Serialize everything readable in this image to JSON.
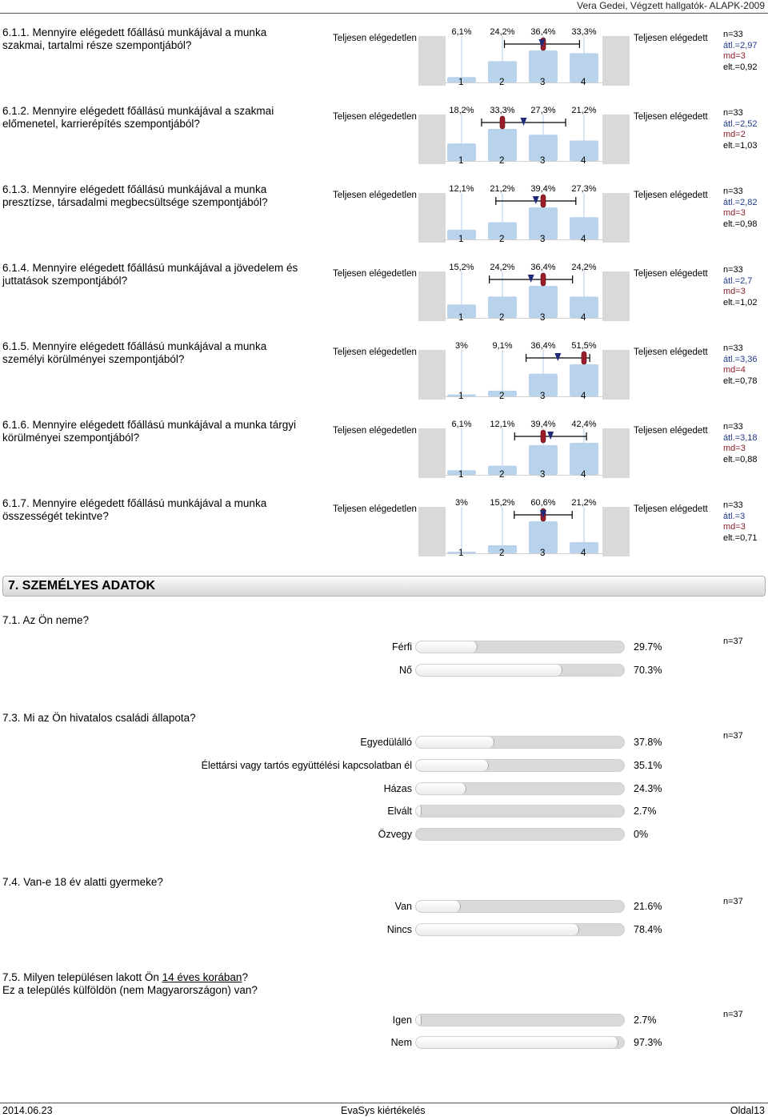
{
  "header": {
    "text": "Vera Gedei, Végzett hallgatók- ALAPK-2009"
  },
  "scale_questions": [
    {
      "title": "6.1.1. Mennyire elégedett főállású munkájával a munka szakmai, tartalmi része szempontjából?",
      "left_label": "Teljesen elégedetlen",
      "right_label": "Teljesen elégedett",
      "percents": [
        "6,1%",
        "24,2%",
        "36,4%",
        "33,3%"
      ],
      "distribution": [
        6.1,
        24.2,
        36.4,
        33.3
      ],
      "scale_labels": [
        "1",
        "2",
        "3",
        "4"
      ],
      "mean": 2.97,
      "median": 3,
      "sd": 0.92,
      "stats": {
        "n": "n=33",
        "avg": "átl.=2,97",
        "md": "md=3",
        "sd": "elt.=0,92"
      }
    },
    {
      "title": "6.1.2. Mennyire elégedett főállású munkájával a szakmai előmenetel, karrierépítés szempontjából?",
      "left_label": "Teljesen elégedetlen",
      "right_label": "Teljesen elégedett",
      "percents": [
        "18,2%",
        "33,3%",
        "27,3%",
        "21,2%"
      ],
      "distribution": [
        18.2,
        33.3,
        27.3,
        21.2
      ],
      "scale_labels": [
        "1",
        "2",
        "3",
        "4"
      ],
      "mean": 2.52,
      "median": 2,
      "sd": 1.03,
      "stats": {
        "n": "n=33",
        "avg": "átl.=2,52",
        "md": "md=2",
        "sd": "elt.=1,03"
      }
    },
    {
      "title": "6.1.3. Mennyire elégedett főállású munkájával a munka presztízse, társadalmi megbecsültsége szempontjából?",
      "left_label": "Teljesen elégedetlen",
      "right_label": "Teljesen elégedett",
      "percents": [
        "12,1%",
        "21,2%",
        "39,4%",
        "27,3%"
      ],
      "distribution": [
        12.1,
        21.2,
        39.4,
        27.3
      ],
      "scale_labels": [
        "1",
        "2",
        "3",
        "4"
      ],
      "mean": 2.82,
      "median": 3,
      "sd": 0.98,
      "stats": {
        "n": "n=33",
        "avg": "átl.=2,82",
        "md": "md=3",
        "sd": "elt.=0,98"
      }
    },
    {
      "title": "6.1.4. Mennyire elégedett főállású munkájával a jövedelem és juttatások szempontjából?",
      "left_label": "Teljesen elégedetlen",
      "right_label": "Teljesen elégedett",
      "percents": [
        "15,2%",
        "24,2%",
        "36,4%",
        "24,2%"
      ],
      "distribution": [
        15.2,
        24.2,
        36.4,
        24.2
      ],
      "scale_labels": [
        "1",
        "2",
        "3",
        "4"
      ],
      "mean": 2.7,
      "median": 3,
      "sd": 1.02,
      "stats": {
        "n": "n=33",
        "avg": "átl.=2,7",
        "md": "md=3",
        "sd": "elt.=1,02"
      }
    },
    {
      "title": "6.1.5. Mennyire elégedett főállású munkájával a munka személyi körülményei szempontjából?",
      "left_label": "Teljesen elégedetlen",
      "right_label": "Teljesen elégedett",
      "percents": [
        "3%",
        "9,1%",
        "36,4%",
        "51,5%"
      ],
      "distribution": [
        3,
        9.1,
        36.4,
        51.5
      ],
      "scale_labels": [
        "1",
        "2",
        "3",
        "4"
      ],
      "mean": 3.36,
      "median": 4,
      "sd": 0.78,
      "stats": {
        "n": "n=33",
        "avg": "átl.=3,36",
        "md": "md=4",
        "sd": "elt.=0,78"
      }
    },
    {
      "title": "6.1.6. Mennyire elégedett főállású munkájával a munka tárgyi körülményei szempontjából?",
      "left_label": "Teljesen elégedetlen",
      "right_label": "Teljesen elégedett",
      "percents": [
        "6,1%",
        "12,1%",
        "39,4%",
        "42,4%"
      ],
      "distribution": [
        6.1,
        12.1,
        39.4,
        42.4
      ],
      "scale_labels": [
        "1",
        "2",
        "3",
        "4"
      ],
      "mean": 3.18,
      "median": 3,
      "sd": 0.88,
      "stats": {
        "n": "n=33",
        "avg": "átl.=3,18",
        "md": "md=3",
        "sd": "elt.=0,88"
      }
    },
    {
      "title": "6.1.7. Mennyire elégedett főállású munkájával a munka összességét tekintve?",
      "left_label": "Teljesen elégedetlen",
      "right_label": "Teljesen elégedett",
      "percents": [
        "3%",
        "15,2%",
        "60,6%",
        "21,2%"
      ],
      "distribution": [
        3,
        15.2,
        60.6,
        21.2
      ],
      "scale_labels": [
        "1",
        "2",
        "3",
        "4"
      ],
      "mean": 3,
      "median": 3,
      "sd": 0.71,
      "stats": {
        "n": "n=33",
        "avg": "átl.=3",
        "md": "md=3",
        "sd": "elt.=0,71"
      }
    }
  ],
  "section": {
    "title": "7. SZEMÉLYES ADATOK"
  },
  "mc_questions": [
    {
      "title": "7.1. Az Ön neme?",
      "n": "n=37",
      "options": [
        {
          "label": "Férfi",
          "pct": "29.7%",
          "value": 29.7
        },
        {
          "label": "Nő",
          "pct": "70.3%",
          "value": 70.3
        }
      ]
    },
    {
      "title": "7.3. Mi az Ön hivatalos családi állapota?",
      "n": "n=37",
      "options": [
        {
          "label": "Egyedülálló",
          "pct": "37.8%",
          "value": 37.8
        },
        {
          "label": "Élettársi vagy tartós együttélési kapcsolatban él",
          "pct": "35.1%",
          "value": 35.1
        },
        {
          "label": "Házas",
          "pct": "24.3%",
          "value": 24.3
        },
        {
          "label": "Elvált",
          "pct": "2.7%",
          "value": 2.7
        },
        {
          "label": "Özvegy",
          "pct": "0%",
          "value": 0
        }
      ]
    },
    {
      "title": "7.4. Van-e 18 év alatti gyermeke?",
      "n": "n=37",
      "options": [
        {
          "label": "Van",
          "pct": "21.6%",
          "value": 21.6
        },
        {
          "label": "Nincs",
          "pct": "78.4%",
          "value": 78.4
        }
      ]
    },
    {
      "title_a": "7.5. Milyen településen lakott Ön ",
      "title_u": "14 éves korában",
      "title_b": "?",
      "title_line2": "Ez a település külföldön (nem Magyarországon) van?",
      "n": "n=37",
      "options": [
        {
          "label": "Igen",
          "pct": "2.7%",
          "value": 2.7
        },
        {
          "label": "Nem",
          "pct": "97.3%",
          "value": 97.3
        }
      ]
    }
  ],
  "footer": {
    "date": "2014.06.23",
    "center": "EvaSys kiértékelés",
    "page": "Oldal13"
  }
}
